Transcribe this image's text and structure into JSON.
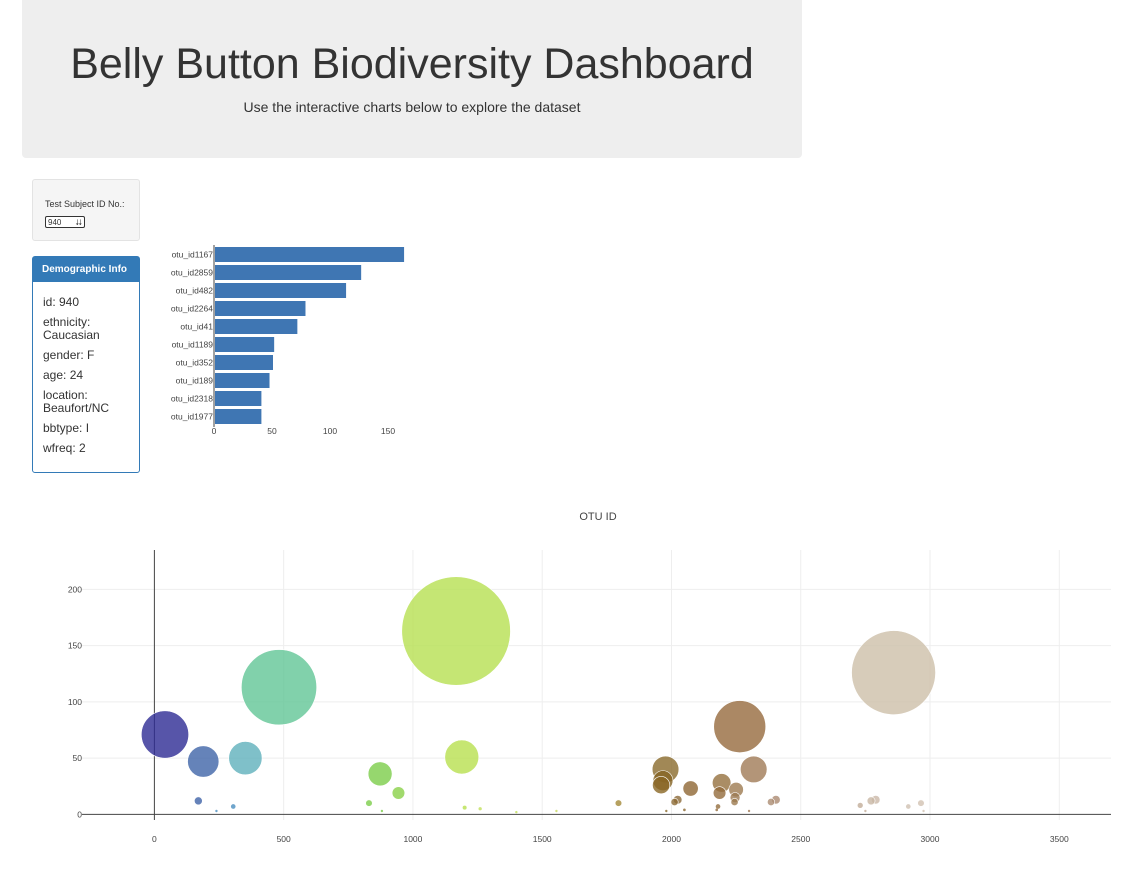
{
  "header": {
    "title": "Belly Button Biodiversity Dashboard",
    "subtitle": "Use the interactive charts below to explore the dataset"
  },
  "selector": {
    "label": "Test Subject ID No.:",
    "selected": "940"
  },
  "demographics": {
    "title": "Demographic Info",
    "rows": [
      "id: 940",
      "ethnicity: Caucasian",
      "gender: F",
      "age: 24",
      "location: Beaufort/NC",
      "bbtype: I",
      "wfreq: 2"
    ]
  },
  "chart_data": [
    {
      "type": "bar",
      "orientation": "horizontal",
      "categories": [
        "otu_id1167",
        "otu_id2859",
        "otu_id482",
        "otu_id2264",
        "otu_id41",
        "otu_id1189",
        "otu_id352",
        "otu_id189",
        "otu_id2318",
        "otu_id1977"
      ],
      "values": [
        163,
        126,
        113,
        78,
        71,
        51,
        50,
        47,
        40,
        40
      ],
      "xlim": [
        0,
        165
      ],
      "xticks": [
        0,
        50,
        100,
        150
      ],
      "color": "#3f76b3"
    },
    {
      "type": "scatter",
      "xlabel": "OTU ID",
      "xlim": [
        -280,
        3700
      ],
      "ylim": [
        -5,
        235
      ],
      "xticks": [
        0,
        500,
        1000,
        1500,
        2000,
        2500,
        3000,
        3500
      ],
      "yticks": [
        0,
        50,
        100,
        150,
        200
      ],
      "grid": true,
      "points": [
        {
          "x": 41,
          "y": 71,
          "color": "#2d2a93"
        },
        {
          "x": 189,
          "y": 47,
          "color": "#3e64a8"
        },
        {
          "x": 352,
          "y": 50,
          "color": "#5fb0bc"
        },
        {
          "x": 482,
          "y": 113,
          "color": "#62c596"
        },
        {
          "x": 1167,
          "y": 163,
          "color": "#b6e051"
        },
        {
          "x": 1189,
          "y": 51,
          "color": "#b8e04f"
        },
        {
          "x": 873,
          "y": 36,
          "color": "#7ccd4a"
        },
        {
          "x": 944,
          "y": 19,
          "color": "#8ad148"
        },
        {
          "x": 2859,
          "y": 126,
          "color": "#cdbfa9"
        },
        {
          "x": 2264,
          "y": 78,
          "color": "#966a3d"
        },
        {
          "x": 2318,
          "y": 40,
          "color": "#a07a56"
        },
        {
          "x": 1977,
          "y": 40,
          "color": "#8a6a2c"
        },
        {
          "x": 1967,
          "y": 30,
          "color": "#866424"
        },
        {
          "x": 1960,
          "y": 26,
          "color": "#8a6624"
        },
        {
          "x": 2194,
          "y": 28,
          "color": "#95703f"
        },
        {
          "x": 2074,
          "y": 23,
          "color": "#8e6733"
        },
        {
          "x": 2250,
          "y": 22,
          "color": "#9e7a50"
        },
        {
          "x": 2186,
          "y": 19,
          "color": "#946c3c"
        },
        {
          "x": 2246,
          "y": 15,
          "color": "#9c7a54"
        },
        {
          "x": 2024,
          "y": 13,
          "color": "#8c6a38"
        },
        {
          "x": 2404,
          "y": 13,
          "color": "#ab8a70"
        },
        {
          "x": 2385,
          "y": 11,
          "color": "#ab8c72"
        },
        {
          "x": 2790,
          "y": 13,
          "color": "#cab8a8"
        },
        {
          "x": 2772,
          "y": 12,
          "color": "#c8b6a4"
        },
        {
          "x": 2730,
          "y": 8,
          "color": "#c2ac98"
        },
        {
          "x": 2965,
          "y": 10,
          "color": "#d2c2b2"
        },
        {
          "x": 1795,
          "y": 10,
          "color": "#a48a38"
        },
        {
          "x": 2012,
          "y": 11,
          "color": "#8c6a34"
        },
        {
          "x": 2244,
          "y": 11,
          "color": "#9c7a50"
        },
        {
          "x": 2916,
          "y": 7,
          "color": "#cfc0b2"
        },
        {
          "x": 2180,
          "y": 7,
          "color": "#946e3e"
        },
        {
          "x": 170,
          "y": 12,
          "color": "#3e63a8"
        },
        {
          "x": 305,
          "y": 7,
          "color": "#4b8fbf"
        },
        {
          "x": 830,
          "y": 10,
          "color": "#7ccd4a"
        },
        {
          "x": 1200,
          "y": 6,
          "color": "#b8e04f"
        },
        {
          "x": 1260,
          "y": 5,
          "color": "#c2e05a"
        },
        {
          "x": 2050,
          "y": 4,
          "color": "#8a6630"
        },
        {
          "x": 2175,
          "y": 4,
          "color": "#946c3c"
        },
        {
          "x": 2300,
          "y": 3,
          "color": "#a07a56"
        },
        {
          "x": 2750,
          "y": 3,
          "color": "#c4ae9a"
        },
        {
          "x": 2975,
          "y": 3,
          "color": "#d2c2b2"
        },
        {
          "x": 1980,
          "y": 3,
          "color": "#8a6a2c"
        },
        {
          "x": 1555,
          "y": 3,
          "color": "#c8d860"
        },
        {
          "x": 880,
          "y": 3,
          "color": "#7ccd4a"
        },
        {
          "x": 240,
          "y": 3,
          "color": "#4b8fbf"
        },
        {
          "x": 1400,
          "y": 2,
          "color": "#c2e05a"
        }
      ]
    }
  ]
}
